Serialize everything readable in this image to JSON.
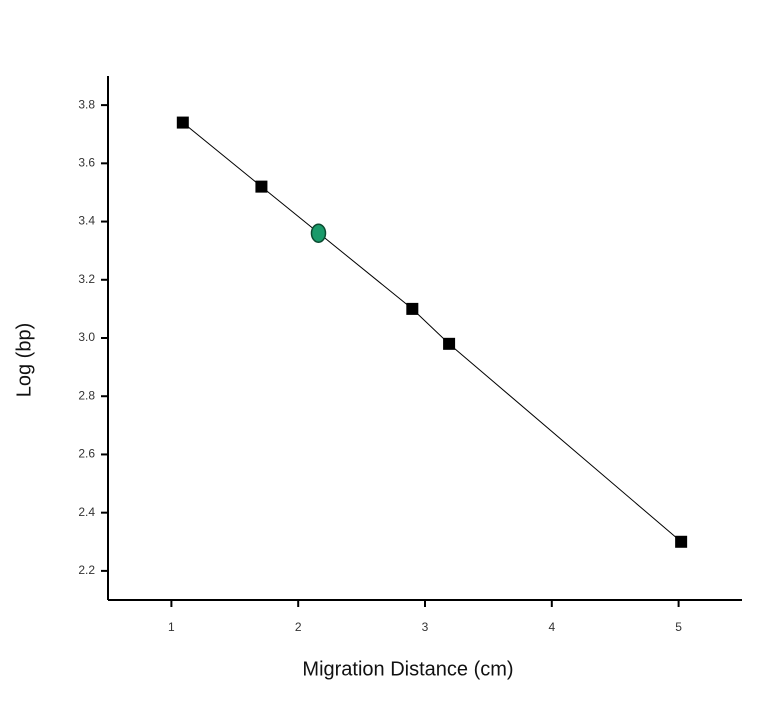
{
  "chart_data": {
    "type": "scatter",
    "x_label": "Migration Distance (cm)",
    "y_label": "Log (bp)",
    "xlim": [
      0.5,
      5.5
    ],
    "xticks": [
      1,
      2,
      3,
      4,
      5
    ],
    "ylim": [
      2.1,
      3.9
    ],
    "yticks": [
      2.2,
      2.4,
      2.6,
      2.8,
      {
        "value": 3.0,
        "label": "3.0"
      },
      3.2,
      3.4,
      3.6,
      3.8
    ],
    "series": [
      {
        "color": "#000000",
        "marker": "square",
        "line": true,
        "x": [
          1.09,
          1.71,
          2.9,
          3.19,
          5.02
        ],
        "values": [
          3.74,
          3.52,
          3.1,
          2.98,
          2.3
        ]
      },
      {
        "color": "#1a9a6a",
        "marker": "circle",
        "line": false,
        "x": [
          2.16
        ],
        "values": [
          3.36
        ]
      }
    ]
  }
}
